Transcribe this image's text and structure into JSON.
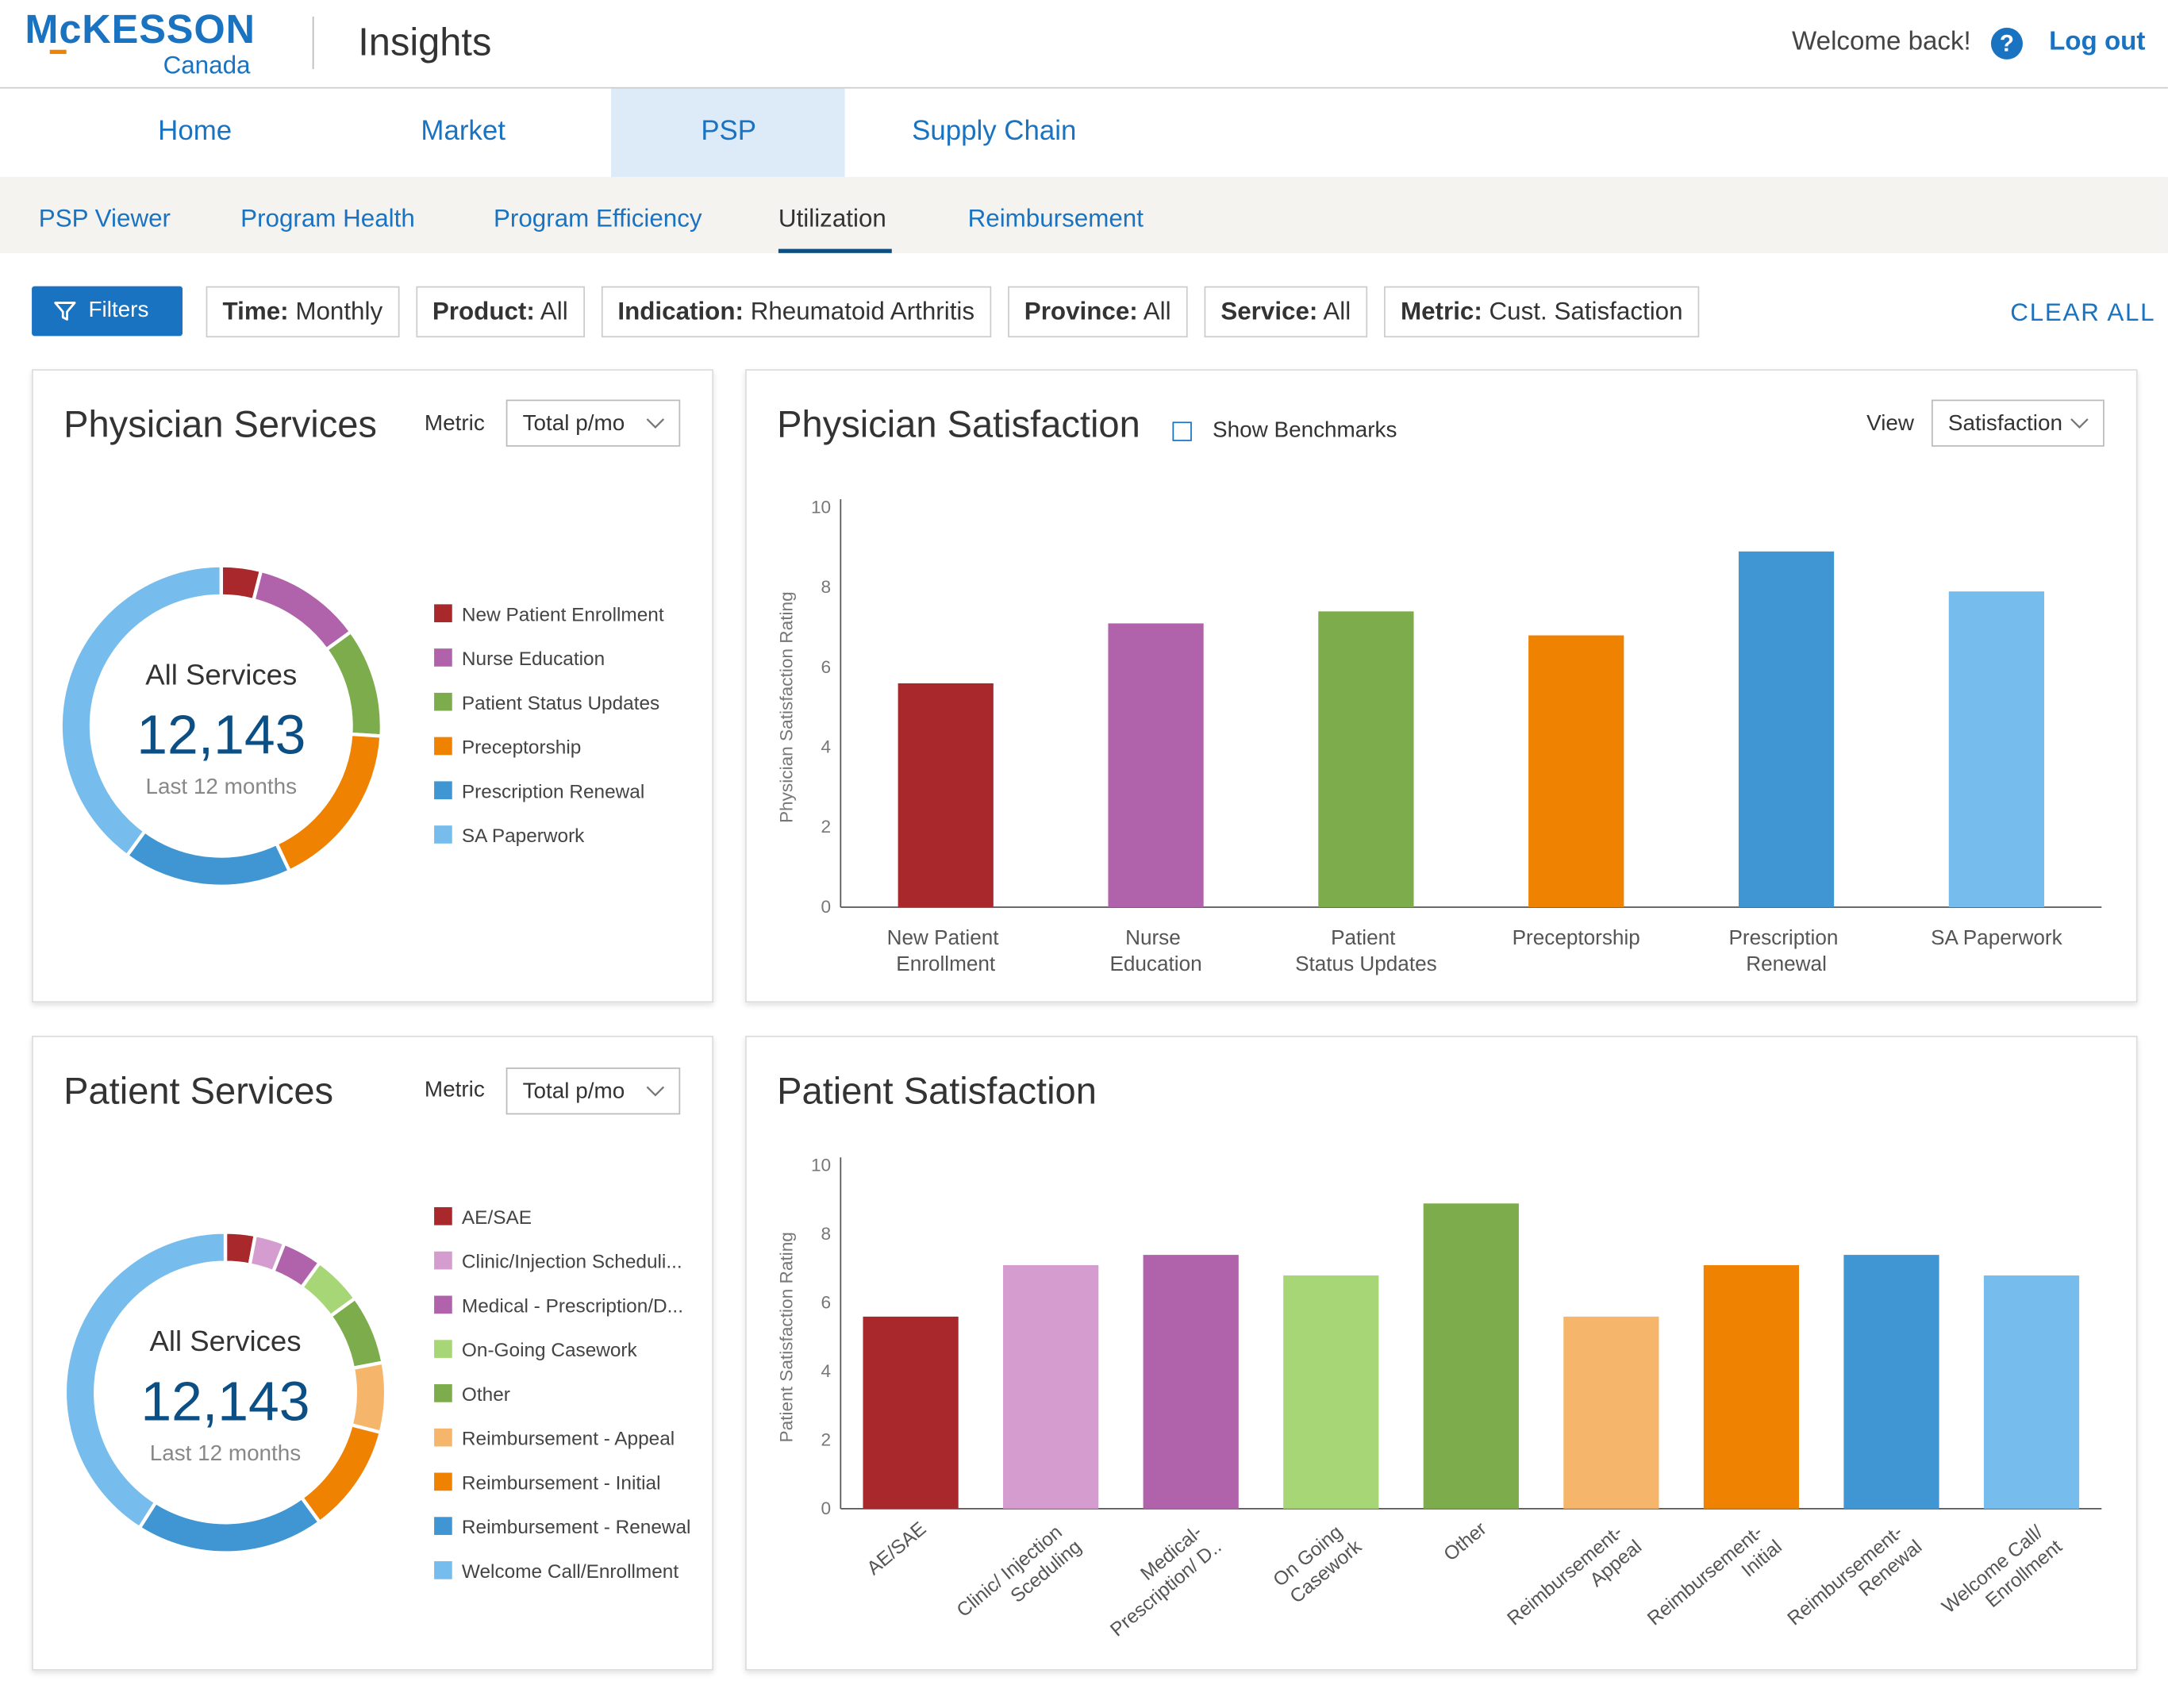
{
  "header": {
    "logo": "McKESSON",
    "logo_sub": "Canada",
    "app": "Insights",
    "welcome": "Welcome back!",
    "help": "?",
    "logout": "Log out"
  },
  "nav": [
    "Home",
    "Market",
    "PSP",
    "Supply Chain"
  ],
  "subnav": [
    "PSP Viewer",
    "Program Health",
    "Program Efficiency",
    "Utilization",
    "Reimbursement"
  ],
  "filters": {
    "button": "Filters",
    "chips": [
      {
        "key": "Time:",
        "value": "Monthly"
      },
      {
        "key": "Product:",
        "value": "All"
      },
      {
        "key": "Indication:",
        "value": "Rheumatoid Arthritis"
      },
      {
        "key": "Province:",
        "value": "All"
      },
      {
        "key": "Service:",
        "value": "All"
      },
      {
        "key": "Metric:",
        "value": "Cust. Satisfaction"
      }
    ],
    "clear": "CLEAR ALL"
  },
  "controls": {
    "physician_services": {
      "label": "Metric",
      "value": "Total p/mo"
    },
    "physician_satisfaction": {
      "checkbox": "Show Benchmarks",
      "label": "View",
      "value": "Satisfaction"
    },
    "patient_services": {
      "label": "Metric",
      "value": "Total p/mo"
    }
  },
  "chart_data": [
    {
      "type": "donut",
      "title": "Physician Services",
      "center_title": "All Services",
      "center_value": "12,143",
      "center_caption": "Last 12 months",
      "categories": [
        "New Patient Enrollment",
        "Nurse Education",
        "Patient Status Updates",
        "Preceptorship",
        "Prescription Renewal",
        "SA Paperwork"
      ],
      "values": [
        4,
        11,
        11,
        17,
        17,
        40
      ],
      "colors": [
        "#a8282b",
        "#b062ab",
        "#7cac4b",
        "#ef8200",
        "#4096d2",
        "#76bdee"
      ]
    },
    {
      "type": "bar",
      "title": "Physician Satisfaction",
      "y_label": "Physician Satisfaction Rating",
      "categories": [
        "New Patient Enrollment",
        "Nurse Education",
        "Patient Status Updates",
        "Preceptorship",
        "Prescription Renewal",
        "SA Paperwork"
      ],
      "values": [
        5.6,
        7.1,
        7.4,
        6.8,
        8.9,
        7.9
      ],
      "colors": [
        "#a8282b",
        "#b062ab",
        "#7cac4b",
        "#ef8200",
        "#4096d2",
        "#76bdee"
      ],
      "ylim": [
        0,
        10
      ],
      "yticks": [
        0,
        2,
        4,
        6,
        8,
        10
      ]
    },
    {
      "type": "donut",
      "title": "Patient Services",
      "center_title": "All Services",
      "center_value": "12,143",
      "center_caption": "Last 12 months",
      "categories": [
        "AE/SAE",
        "Clinic/Injection Scheduli...",
        "Medical - Prescription/D...",
        "On-Going Casework",
        "Other",
        "Reimbursement - Appeal",
        "Reimbursement - Initial",
        "Reimbursement - Renewal",
        "Welcome Call/Enrollment"
      ],
      "values": [
        3,
        3,
        4,
        5,
        7,
        7,
        11,
        19,
        41
      ],
      "colors": [
        "#a8282b",
        "#d49ccf",
        "#b062ab",
        "#a7d677",
        "#7cac4b",
        "#f5b56a",
        "#ef8200",
        "#4096d2",
        "#76bdee"
      ]
    },
    {
      "type": "bar",
      "title": "Patient Satisfaction",
      "y_label": "Patient Satisfaction Rating",
      "categories": [
        "AE/SAE",
        "Clinic/ Injection Sceduling",
        "Medical- Prescription/ D..",
        "On Going Casework",
        "Other",
        "Reimbursement- Appeal",
        "Reimbursement- Initial",
        "Reimbursement- Renewal",
        "Welcome Call/ Enrollment"
      ],
      "values": [
        5.6,
        7.1,
        7.4,
        6.8,
        8.9,
        5.6,
        7.1,
        7.4,
        6.8
      ],
      "colors": [
        "#a8282b",
        "#d49ccf",
        "#b062ab",
        "#a7d677",
        "#7cac4b",
        "#f5b56a",
        "#ef8200",
        "#4096d2",
        "#76bdee"
      ],
      "ylim": [
        0,
        10
      ],
      "yticks": [
        0,
        2,
        4,
        6,
        8,
        10
      ]
    }
  ]
}
